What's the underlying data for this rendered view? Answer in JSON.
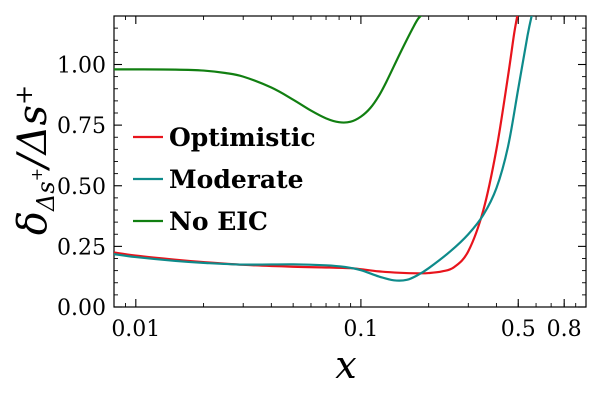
{
  "chart_data": {
    "type": "line",
    "xlabel": "x",
    "ylabel_main": "δ",
    "ylabel_sub": "Δs",
    "ylabel_sub_sup": "+",
    "ylabel_div": "/Δs",
    "ylabel_div_sup": "+",
    "xscale": "log",
    "xlim": [
      0.008,
      1.0
    ],
    "ylim": [
      0.0,
      1.2
    ],
    "xticks": [
      {
        "value": 0.01,
        "label": "0.01"
      },
      {
        "value": 0.1,
        "label": "0.1"
      },
      {
        "value": 0.5,
        "label": "0.5"
      },
      {
        "value": 0.8,
        "label": "0.8"
      }
    ],
    "yticks": [
      {
        "value": 0.0,
        "label": "0.00"
      },
      {
        "value": 0.25,
        "label": "0.25"
      },
      {
        "value": 0.5,
        "label": "0.50"
      },
      {
        "value": 0.75,
        "label": "0.75"
      },
      {
        "value": 1.0,
        "label": "1.00"
      }
    ],
    "grid": false,
    "legend_position": "center-left",
    "series": [
      {
        "name": "Optimistic",
        "color": "#e8141c",
        "x": [
          0.008,
          0.01,
          0.015,
          0.02,
          0.03,
          0.05,
          0.07,
          0.09,
          0.1,
          0.12,
          0.15,
          0.18,
          0.2,
          0.23,
          0.26,
          0.3,
          0.35,
          0.4,
          0.45,
          0.48,
          0.5
        ],
        "y": [
          0.225,
          0.212,
          0.195,
          0.185,
          0.174,
          0.166,
          0.163,
          0.16,
          0.156,
          0.147,
          0.141,
          0.139,
          0.14,
          0.147,
          0.165,
          0.23,
          0.4,
          0.65,
          0.95,
          1.13,
          1.22
        ]
      },
      {
        "name": "Moderate",
        "color": "#0e8b8b",
        "x": [
          0.008,
          0.01,
          0.015,
          0.02,
          0.03,
          0.05,
          0.07,
          0.085,
          0.1,
          0.12,
          0.14,
          0.16,
          0.18,
          0.2,
          0.25,
          0.3,
          0.35,
          0.4,
          0.45,
          0.5,
          0.55,
          0.58
        ],
        "y": [
          0.218,
          0.206,
          0.19,
          0.182,
          0.175,
          0.176,
          0.172,
          0.165,
          0.152,
          0.126,
          0.11,
          0.112,
          0.133,
          0.16,
          0.23,
          0.3,
          0.38,
          0.49,
          0.66,
          0.9,
          1.12,
          1.22
        ]
      },
      {
        "name": "No EIC",
        "color": "#117f11",
        "x": [
          0.008,
          0.01,
          0.015,
          0.02,
          0.025,
          0.03,
          0.04,
          0.05,
          0.06,
          0.07,
          0.08,
          0.09,
          0.1,
          0.11,
          0.12,
          0.13,
          0.15,
          0.17,
          0.18,
          0.19
        ],
        "y": [
          0.98,
          0.98,
          0.979,
          0.975,
          0.965,
          0.95,
          0.905,
          0.855,
          0.81,
          0.778,
          0.762,
          0.764,
          0.785,
          0.82,
          0.87,
          0.93,
          1.05,
          1.15,
          1.19,
          1.21
        ]
      }
    ]
  }
}
